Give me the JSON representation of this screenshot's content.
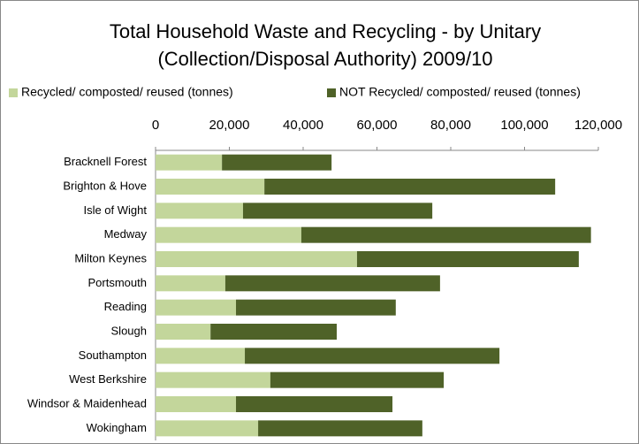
{
  "chart_data": {
    "type": "stacked-bar-horizontal",
    "title": [
      "Total Household Waste and Recycling - by Unitary",
      "(Collection/Disposal Authority) 2009/10"
    ],
    "categories": [
      "Bracknell Forest",
      "Brighton & Hove",
      "Isle of Wight",
      "Medway",
      "Milton Keynes",
      "Portsmouth",
      "Reading",
      "Slough",
      "Southampton",
      "West Berkshire",
      "Windsor & Maidenhead",
      "Wokingham"
    ],
    "series": [
      {
        "name": "Recycled/ composted/ reused (tonnes)",
        "color": "#c3d69b",
        "values": [
          18000,
          29500,
          23700,
          39500,
          54600,
          18900,
          21800,
          14900,
          24200,
          31100,
          21800,
          27800
        ]
      },
      {
        "name": "NOT Recycled/ composted/ reused (tonnes)",
        "color": "#4f6228",
        "values": [
          29700,
          78800,
          51300,
          78500,
          60100,
          58200,
          43300,
          34200,
          69000,
          47000,
          42400,
          44500
        ]
      }
    ],
    "xlim": [
      0,
      120000
    ],
    "xticks": [
      0,
      {
        "value": 20000,
        "label": "20,000"
      },
      {
        "value": 40000,
        "label": "40,000"
      },
      {
        "value": 60000,
        "label": "60,000"
      },
      {
        "value": 80000,
        "label": "80,000"
      },
      {
        "value": 100000,
        "label": "100,000"
      },
      {
        "value": 120000,
        "label": "120,000"
      }
    ],
    "legend": "top"
  }
}
